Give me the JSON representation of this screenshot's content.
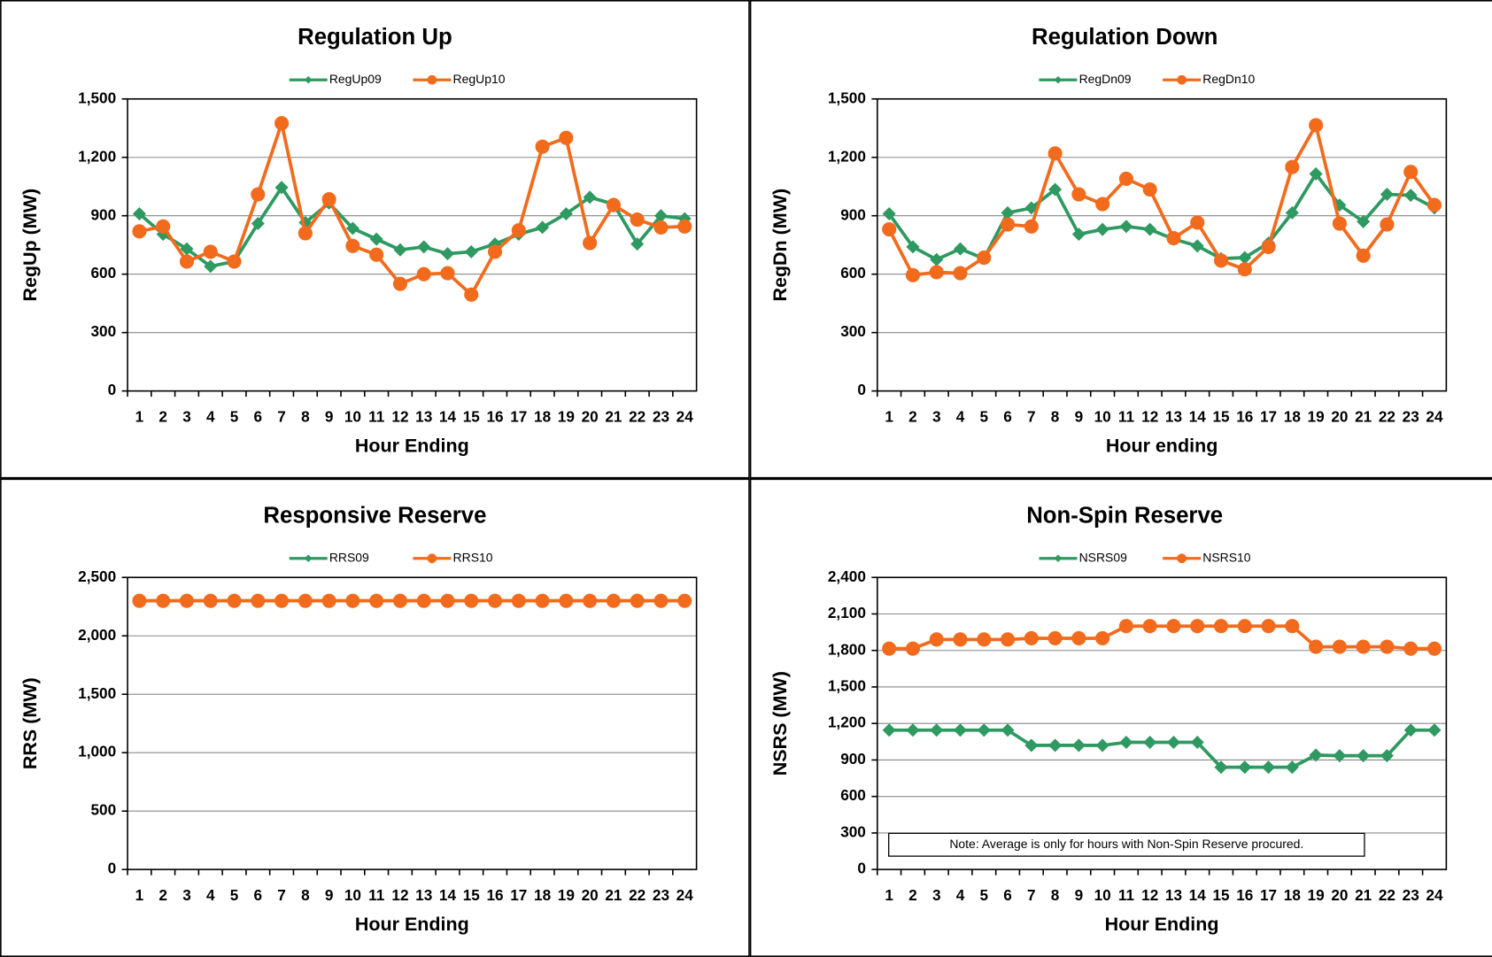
{
  "chart_data": [
    {
      "type": "line",
      "title": "Regulation Up",
      "ylabel": "RegUp (MW)",
      "xlabel": "Hour Ending",
      "categories": [
        1,
        2,
        3,
        4,
        5,
        6,
        7,
        8,
        9,
        10,
        11,
        12,
        13,
        14,
        15,
        16,
        17,
        18,
        19,
        20,
        21,
        22,
        23,
        24
      ],
      "series": [
        {
          "name": "RegUp09",
          "color": "#2e9960",
          "marker": "diamond",
          "values": [
            910,
            805,
            730,
            640,
            665,
            860,
            1045,
            865,
            965,
            835,
            780,
            725,
            740,
            705,
            715,
            755,
            805,
            840,
            910,
            995,
            960,
            755,
            900,
            885
          ]
        },
        {
          "name": "RegUp10",
          "color": "#f26b1d",
          "marker": "circle",
          "values": [
            820,
            845,
            665,
            715,
            665,
            1010,
            1375,
            810,
            985,
            745,
            700,
            550,
            600,
            605,
            495,
            715,
            825,
            1255,
            1300,
            760,
            955,
            880,
            840,
            845
          ]
        }
      ],
      "ylim": [
        0,
        1500
      ],
      "yticks": [
        0,
        300,
        600,
        900,
        {
          "value": 1200,
          "label": "1,200"
        },
        {
          "value": 1500,
          "label": "1,500"
        }
      ],
      "grid": true,
      "legend": "top"
    },
    {
      "type": "line",
      "title": "Regulation Down",
      "ylabel": "RegDn (MW)",
      "xlabel": "Hour ending",
      "categories": [
        1,
        2,
        3,
        4,
        5,
        6,
        7,
        8,
        9,
        10,
        11,
        12,
        13,
        14,
        15,
        16,
        17,
        18,
        19,
        20,
        21,
        22,
        23,
        24
      ],
      "series": [
        {
          "name": "RegDn09",
          "color": "#2e9960",
          "marker": "diamond",
          "values": [
            910,
            740,
            675,
            730,
            680,
            915,
            940,
            1035,
            805,
            830,
            845,
            830,
            780,
            745,
            680,
            685,
            760,
            915,
            1115,
            955,
            870,
            1010,
            1005,
            940
          ]
        },
        {
          "name": "RegDn10",
          "color": "#f26b1d",
          "marker": "circle",
          "values": [
            830,
            595,
            610,
            605,
            685,
            855,
            845,
            1220,
            1010,
            960,
            1090,
            1035,
            785,
            865,
            670,
            625,
            740,
            1150,
            1365,
            860,
            695,
            855,
            1125,
            955
          ]
        }
      ],
      "ylim": [
        0,
        1500
      ],
      "yticks": [
        0,
        300,
        600,
        900,
        {
          "value": 1200,
          "label": "1,200"
        },
        {
          "value": 1500,
          "label": "1,500"
        }
      ],
      "grid": true,
      "legend": "top"
    },
    {
      "type": "line",
      "title": "Responsive Reserve",
      "ylabel": "RRS (MW)",
      "xlabel": "Hour Ending",
      "categories": [
        1,
        2,
        3,
        4,
        5,
        6,
        7,
        8,
        9,
        10,
        11,
        12,
        13,
        14,
        15,
        16,
        17,
        18,
        19,
        20,
        21,
        22,
        23,
        24
      ],
      "series": [
        {
          "name": "RRS09",
          "color": "#2e9960",
          "marker": "diamond",
          "values": [
            2300,
            2300,
            2300,
            2300,
            2300,
            2300,
            2300,
            2300,
            2300,
            2300,
            2300,
            2300,
            2300,
            2300,
            2300,
            2300,
            2300,
            2300,
            2300,
            2300,
            2300,
            2300,
            2300,
            2300
          ]
        },
        {
          "name": "RRS10",
          "color": "#f26b1d",
          "marker": "circle",
          "values": [
            2300,
            2300,
            2300,
            2300,
            2300,
            2300,
            2300,
            2300,
            2300,
            2300,
            2300,
            2300,
            2300,
            2300,
            2300,
            2300,
            2300,
            2300,
            2300,
            2300,
            2300,
            2300,
            2300,
            2300
          ]
        }
      ],
      "ylim": [
        0,
        2500
      ],
      "yticks": [
        0,
        500,
        {
          "value": 1000,
          "label": "1,000"
        },
        {
          "value": 1500,
          "label": "1,500"
        },
        {
          "value": 2000,
          "label": "2,000"
        },
        {
          "value": 2500,
          "label": "2,500"
        }
      ],
      "grid": true,
      "legend": "top"
    },
    {
      "type": "line",
      "title": "Non-Spin Reserve",
      "ylabel": "NSRS (MW)",
      "xlabel": "Hour Ending",
      "categories": [
        1,
        2,
        3,
        4,
        5,
        6,
        7,
        8,
        9,
        10,
        11,
        12,
        13,
        14,
        15,
        16,
        17,
        18,
        19,
        20,
        21,
        22,
        23,
        24
      ],
      "series": [
        {
          "name": "NSRS09",
          "color": "#2e9960",
          "marker": "diamond",
          "values": [
            1145,
            1145,
            1145,
            1145,
            1145,
            1145,
            1020,
            1020,
            1020,
            1020,
            1045,
            1045,
            1045,
            1045,
            840,
            840,
            840,
            840,
            940,
            935,
            935,
            935,
            1145,
            1145
          ]
        },
        {
          "name": "NSRS10",
          "color": "#f26b1d",
          "marker": "circle",
          "values": [
            1815,
            1815,
            1890,
            1890,
            1890,
            1890,
            1900,
            1900,
            1900,
            1900,
            2000,
            2000,
            2000,
            2000,
            2000,
            2000,
            2000,
            2000,
            1830,
            1830,
            1830,
            1830,
            1815,
            1815
          ]
        }
      ],
      "ylim": [
        0,
        2400
      ],
      "yticks": [
        0,
        300,
        600,
        900,
        {
          "value": 1200,
          "label": "1,200"
        },
        {
          "value": 1500,
          "label": "1,500"
        },
        {
          "value": 1800,
          "label": "1,800"
        },
        {
          "value": 2100,
          "label": "2,100"
        },
        {
          "value": 2400,
          "label": "2,400"
        }
      ],
      "grid": true,
      "legend": "top",
      "annotation": "Note: Average is only for hours with Non-Spin Reserve procured."
    }
  ]
}
